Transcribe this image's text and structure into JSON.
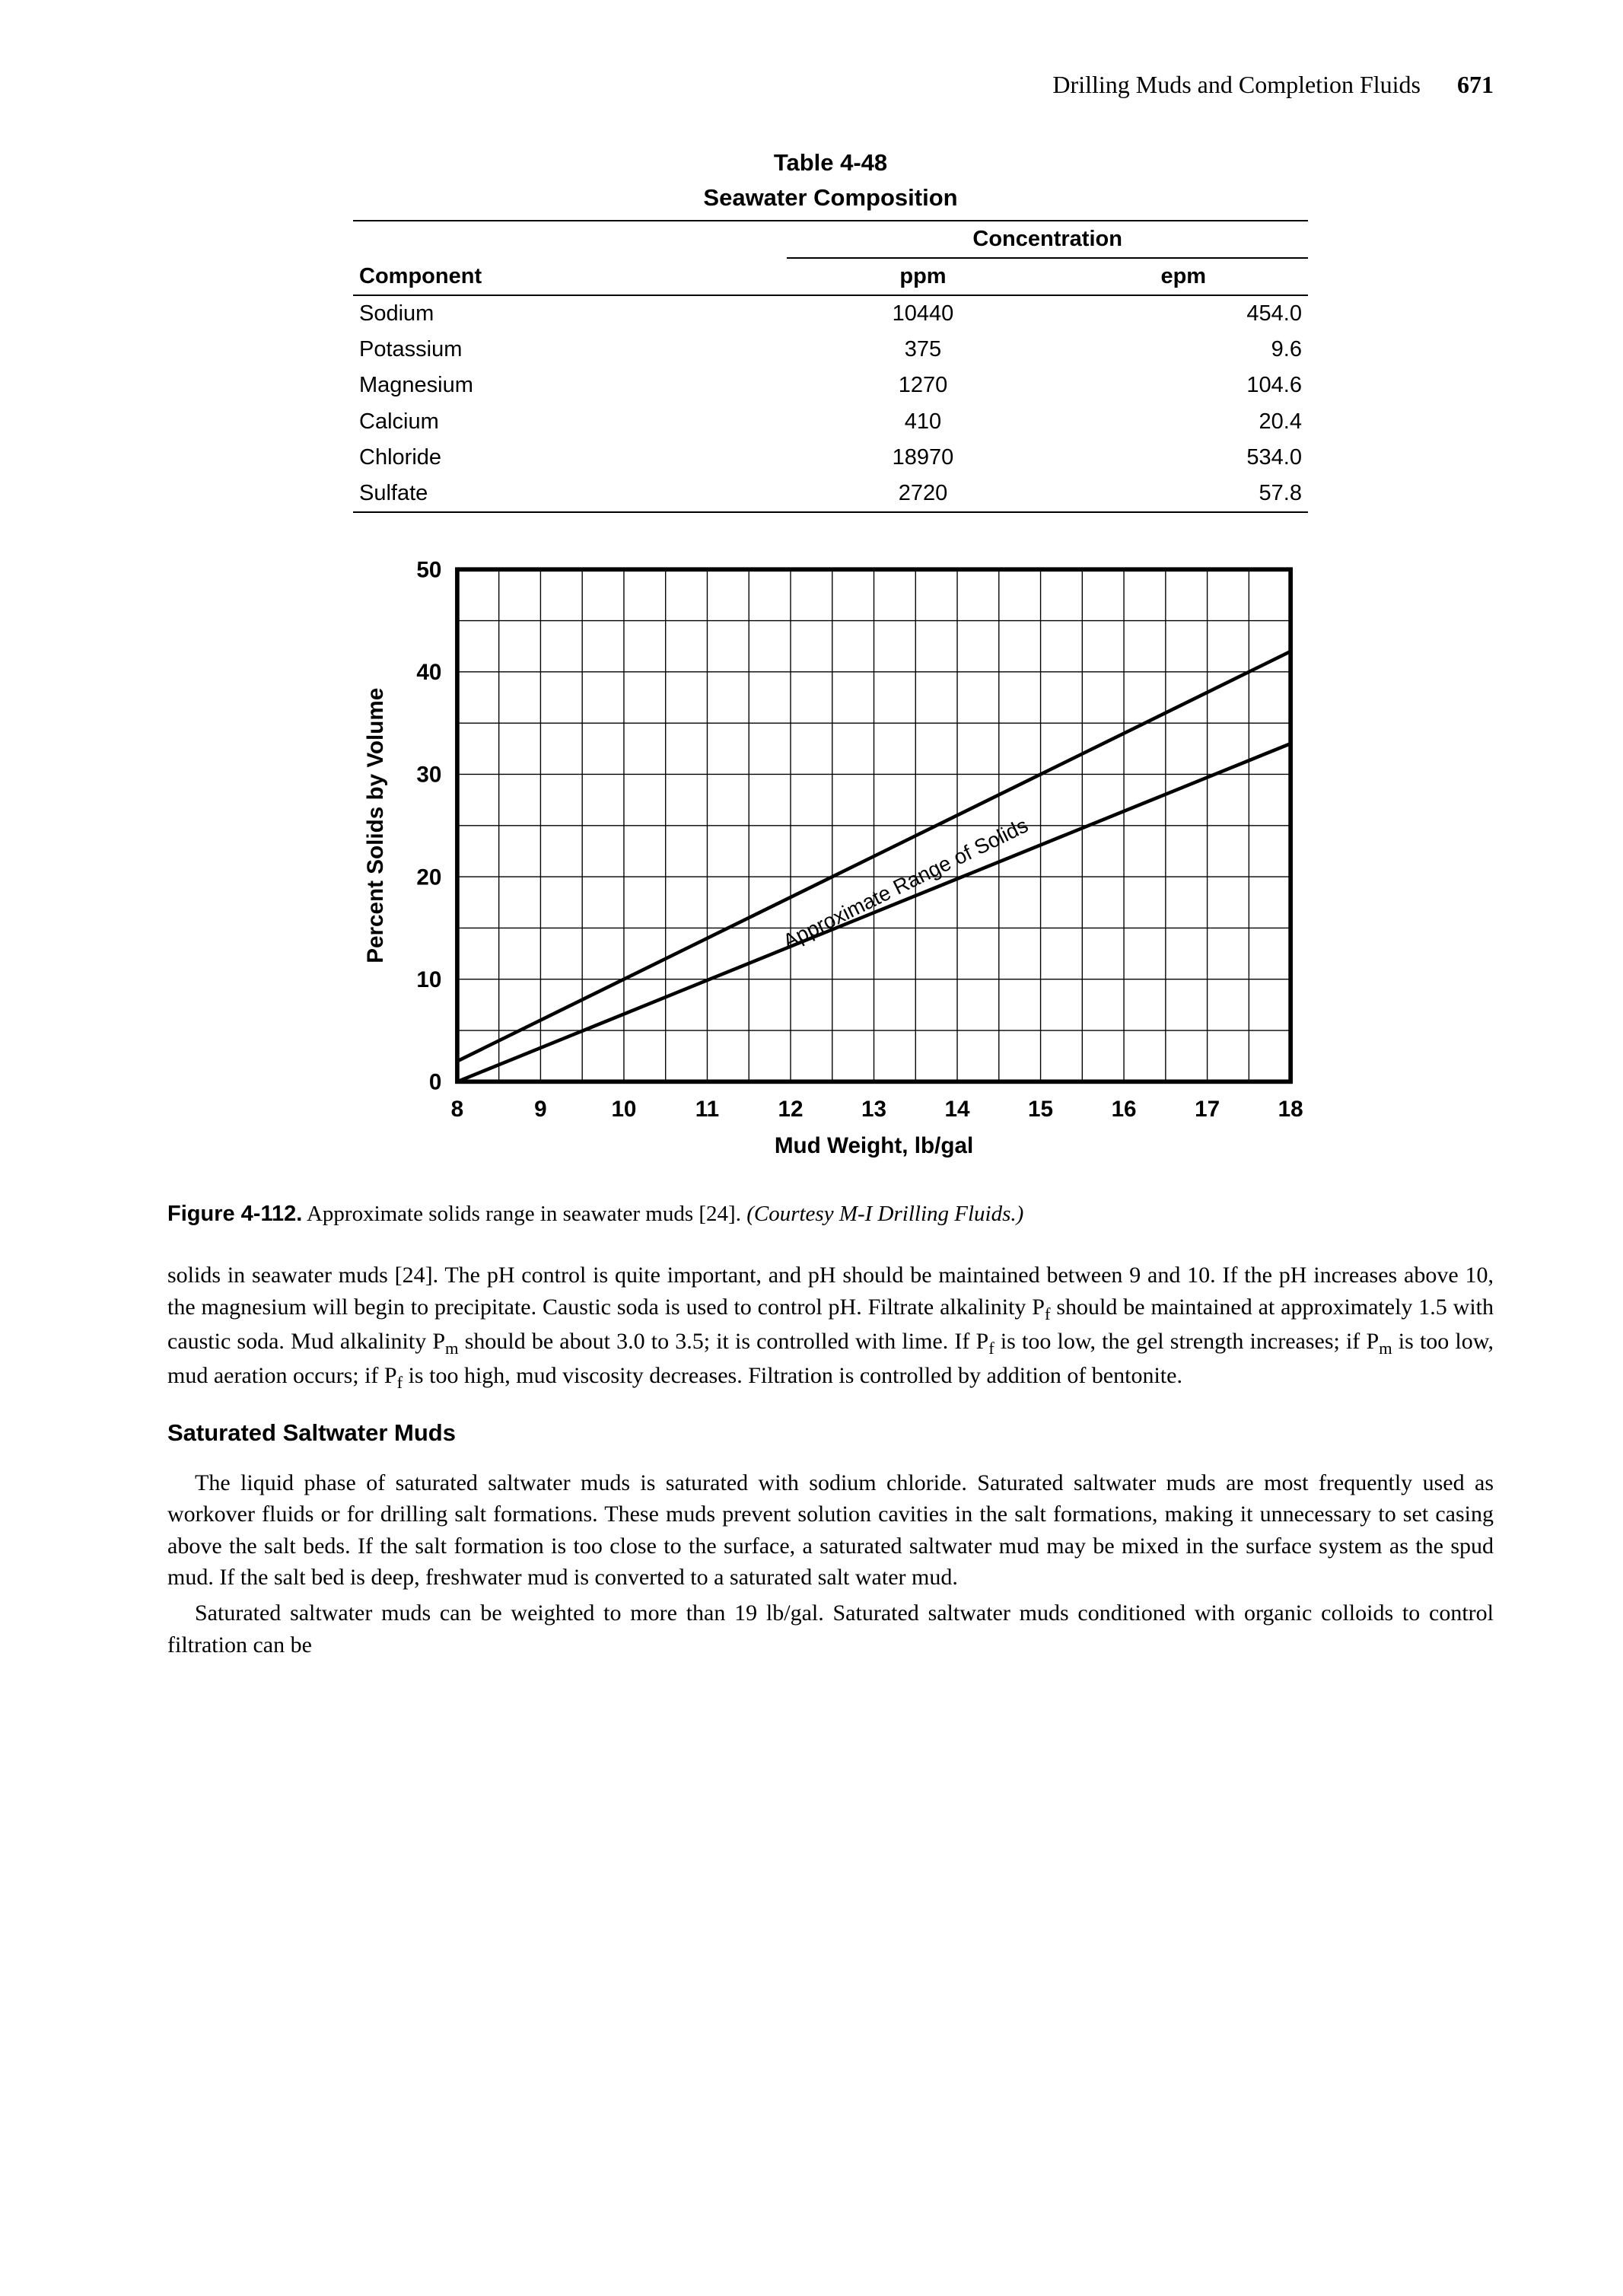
{
  "header": {
    "title": "Drilling Muds and Completion Fluids",
    "page": "671"
  },
  "table": {
    "label": "Table 4-48",
    "title": "Seawater Composition",
    "concHeader": "Concentration",
    "compHeader": "Component",
    "col1": "ppm",
    "col2": "epm",
    "rows": [
      {
        "name": "Sodium",
        "ppm": "10440",
        "epm": "454.0"
      },
      {
        "name": "Potassium",
        "ppm": "375",
        "epm": "9.6"
      },
      {
        "name": "Magnesium",
        "ppm": "1270",
        "epm": "104.6"
      },
      {
        "name": "Calcium",
        "ppm": "410",
        "epm": "20.4"
      },
      {
        "name": "Chloride",
        "ppm": "18970",
        "epm": "534.0"
      },
      {
        "name": "Sulfate",
        "ppm": "2720",
        "epm": "57.8"
      }
    ]
  },
  "chart": {
    "type": "area_band",
    "xlabel": "Mud Weight, lb/gal",
    "ylabel": "Percent Solids by Volume",
    "xlim": [
      8,
      18
    ],
    "ylim": [
      0,
      50
    ],
    "xticks": [
      8,
      9,
      10,
      11,
      12,
      13,
      14,
      15,
      16,
      17,
      18
    ],
    "yticks": [
      0,
      10,
      20,
      30,
      40,
      50
    ],
    "band_upper": [
      [
        8,
        2
      ],
      [
        18,
        42
      ]
    ],
    "band_lower": [
      [
        8,
        0
      ],
      [
        18,
        33
      ]
    ],
    "band_label": "Approximate Range of Solids",
    "background_color": "#ffffff",
    "grid_color": "#000000",
    "line_width": 2,
    "label_fontsize": 26,
    "tick_fontsize": 26,
    "annotation_fontsize": 24
  },
  "figure": {
    "label": "Figure 4-112.",
    "text": "Approximate solids range in seawater muds [24].",
    "citation": "(Courtesy M-I Drilling Fluids.)"
  },
  "paragraphs": {
    "p1": "solids in seawater muds [24]. The pH control is quite important, and pH should be maintained between 9 and 10. If the pH increases above 10, the magnesium will begin to precipitate. Caustic soda is used to control pH. Filtrate alkalinity P",
    "p1b": " should be maintained at approximately 1.5 with caustic soda. Mud alkalinity P",
    "p1c": " should be about 3.0 to 3.5; it is controlled with lime. If P",
    "p1d": " is too low, the gel strength increases; if P",
    "p1e": " is too low, mud aeration occurs; if P",
    "p1f": " is too high, mud viscosity decreases. Filtration is controlled by addition of bentonite.",
    "heading": "Saturated Saltwater Muds",
    "p2": "The liquid phase of saturated saltwater muds is saturated with sodium chloride. Saturated saltwater muds are most frequently used as workover fluids or for drilling salt formations. These muds prevent solution cavities in the salt formations, making it unnecessary to set casing above the salt beds. If the salt formation is too close to the surface, a saturated saltwater mud may be mixed in the surface system as the spud mud. If the salt bed is deep, freshwater mud is converted to a saturated salt water mud.",
    "p3": "Saturated saltwater muds can be weighted to more than 19 lb/gal. Saturated saltwater muds conditioned with organic colloids to control filtration can be"
  }
}
